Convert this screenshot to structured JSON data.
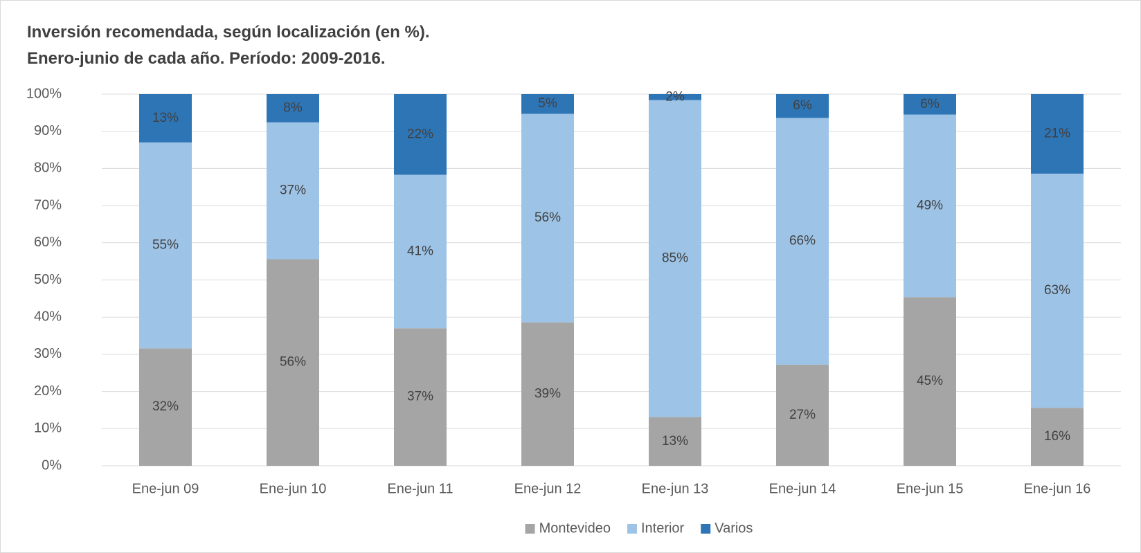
{
  "chart_data": {
    "type": "stacked_bar",
    "title": "Inversión recomendada, según localización (en %).",
    "subtitle": "Enero-junio de cada año. Período: 2009-2016.",
    "categories": [
      "Ene-jun 09",
      "Ene-jun 10",
      "Ene-jun 11",
      "Ene-jun 12",
      "Ene-jun 13",
      "Ene-jun 14",
      "Ene-jun 15",
      "Ene-jun 16"
    ],
    "series": [
      {
        "name": "Montevideo",
        "color": "#a5a5a5",
        "values": [
          31.6,
          55.6,
          37.0,
          38.6,
          13.1,
          27.2,
          45.4,
          15.6
        ],
        "value_labels": [
          "32%",
          "56%",
          "37%",
          "39%",
          "13%",
          "27%",
          "45%",
          "16%"
        ]
      },
      {
        "name": "Interior",
        "color": "#9dc3e6",
        "values": [
          55.4,
          36.8,
          41.3,
          56.1,
          85.3,
          66.4,
          49.1,
          63.0
        ],
        "value_labels": [
          "55%",
          "37%",
          "41%",
          "56%",
          "85%",
          "66%",
          "49%",
          "63%"
        ]
      },
      {
        "name": "Varios",
        "color": "#2e75b6",
        "values": [
          13.0,
          7.6,
          21.7,
          5.3,
          1.6,
          6.4,
          5.5,
          21.4
        ],
        "value_labels": [
          "13%",
          "8%",
          "22%",
          "5%",
          "2%",
          "6%",
          "6%",
          "21%"
        ]
      }
    ],
    "ylim": [
      0,
      100
    ],
    "yticks": [
      {
        "value": 0,
        "label": "0%"
      },
      {
        "value": 10,
        "label": "10%"
      },
      {
        "value": 20,
        "label": "20%"
      },
      {
        "value": 30,
        "label": "30%"
      },
      {
        "value": 40,
        "label": "40%"
      },
      {
        "value": 50,
        "label": "50%"
      },
      {
        "value": 60,
        "label": "60%"
      },
      {
        "value": 70,
        "label": "70%"
      },
      {
        "value": 80,
        "label": "80%"
      },
      {
        "value": 90,
        "label": "90%"
      },
      {
        "value": 100,
        "label": "100%"
      }
    ],
    "grid": true,
    "legend": "bottom"
  }
}
